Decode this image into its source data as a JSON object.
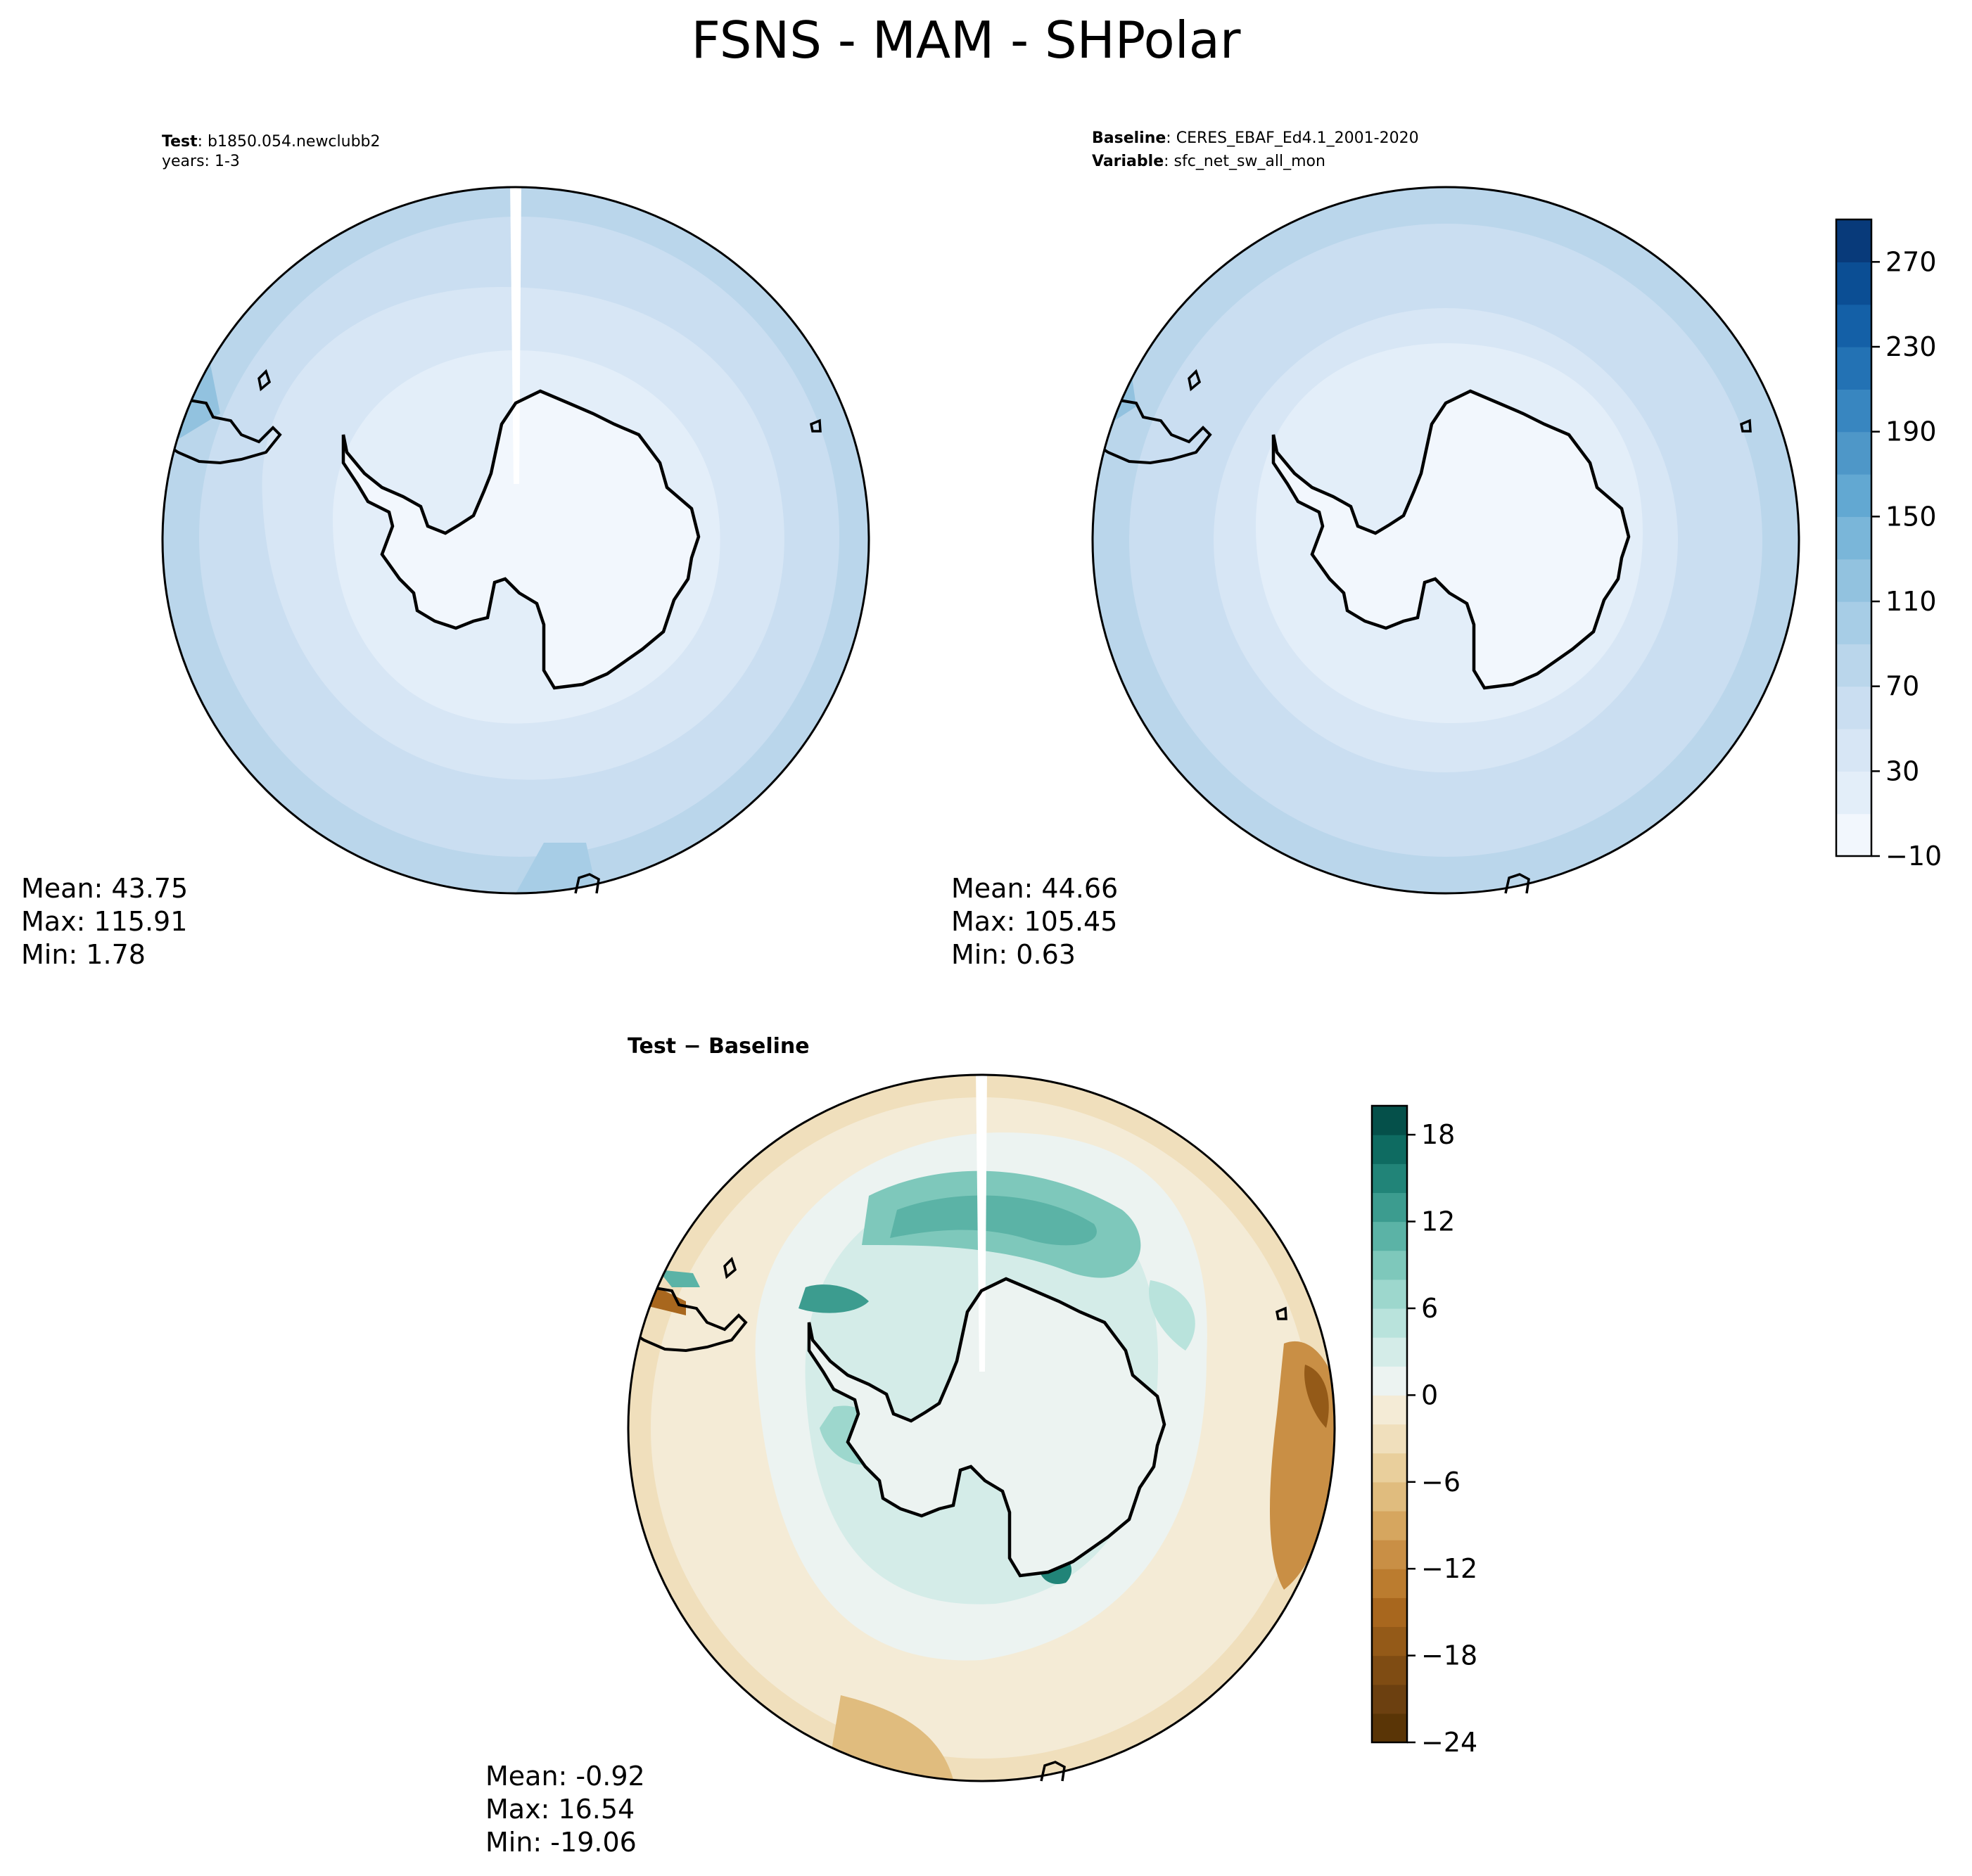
{
  "figure": {
    "title": "FSNS - MAM - SHPolar"
  },
  "panels": {
    "test": {
      "label_key": "Test",
      "label_value": "b1850.054.newclubb2",
      "years": "years: 1-3",
      "stats": {
        "mean": "Mean: 43.75",
        "max": "Max: 115.91",
        "min": "Min:  1.78"
      }
    },
    "baseline": {
      "label_key": "Baseline",
      "label_value": "CERES_EBAF_Ed4.1_2001-2020",
      "var_key": "Variable",
      "var_value": "sfc_net_sw_all_mon",
      "stats": {
        "mean": "Mean: 44.66",
        "max": "Max: 105.45",
        "min": "Min:  0.63"
      }
    },
    "diff": {
      "title": "Test − Baseline",
      "stats": {
        "mean": "Mean: -0.92",
        "max": "Max: 16.54",
        "min": "Min: -19.06"
      }
    }
  },
  "colorbars": {
    "abs": {
      "ticks": [
        "−10",
        "30",
        "70",
        "110",
        "150",
        "190",
        "230",
        "270"
      ],
      "levels": 15,
      "colors": [
        "#f2f7fd",
        "#e3eef9",
        "#d7e6f5",
        "#cadef1",
        "#bad6eb",
        "#a7cde6",
        "#92c2df",
        "#7ab6d9",
        "#62a8d2",
        "#4e97c8",
        "#3886c0",
        "#2372b4",
        "#1460a7",
        "#0b4e94",
        "#083a7a"
      ]
    },
    "diff": {
      "ticks": [
        "−24",
        "−18",
        "−12",
        "−6",
        "0",
        "6",
        "12",
        "18"
      ],
      "levels": 22,
      "colors": [
        "#5a3506",
        "#6c4010",
        "#7f4c13",
        "#945a18",
        "#a8671e",
        "#bb7c2f",
        "#c98f45",
        "#d6a65f",
        "#e0bc7e",
        "#e9cf9c",
        "#f0dfbc",
        "#f4ebd6",
        "#ecf3f1",
        "#d4ece8",
        "#b9e3dc",
        "#9dd7cd",
        "#7ec8bb",
        "#5bb3a6",
        "#3c9c8f",
        "#218478",
        "#0e6b61",
        "#05504a"
      ]
    }
  },
  "map": {
    "projection": "South Polar Stereographic",
    "region": "SHPolar",
    "season": "MAM",
    "variable": "FSNS"
  },
  "chart_data": [
    {
      "type": "heatmap",
      "title": "Test",
      "subtitle": "b1850.054.newclubb2 years: 1-3",
      "mean": 43.75,
      "max": 115.91,
      "min": 1.78,
      "colorbar_range": [
        -10,
        290
      ]
    },
    {
      "type": "heatmap",
      "title": "Baseline",
      "subtitle": "CERES_EBAF_Ed4.1_2001-2020 sfc_net_sw_all_mon",
      "mean": 44.66,
      "max": 105.45,
      "min": 0.63,
      "colorbar_range": [
        -10,
        290
      ]
    },
    {
      "type": "heatmap",
      "title": "Test − Baseline",
      "mean": -0.92,
      "max": 16.54,
      "min": -19.06,
      "colorbar_range": [
        -24,
        21
      ]
    }
  ]
}
